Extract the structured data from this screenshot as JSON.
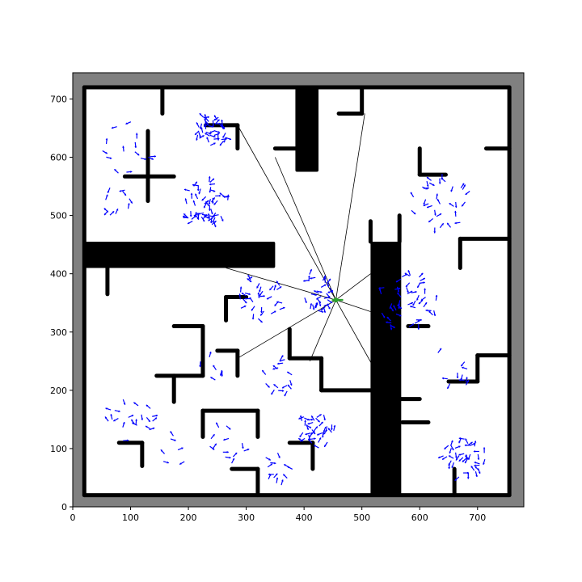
{
  "chart_data": {
    "type": "scatter",
    "title": "",
    "xlabel": "",
    "ylabel": "",
    "xlim": [
      0,
      780
    ],
    "ylim": [
      0,
      745
    ],
    "xticks": [
      0,
      100,
      200,
      300,
      400,
      500,
      600,
      700
    ],
    "yticks": [
      0,
      100,
      200,
      300,
      400,
      500,
      600,
      700
    ],
    "xtick_labels": [
      "0",
      "100",
      "200",
      "300",
      "400",
      "500",
      "600",
      "700"
    ],
    "ytick_labels": [
      "0",
      "100",
      "200",
      "300",
      "400",
      "500",
      "600",
      "700"
    ],
    "grid": false,
    "legend": "none",
    "colors": {
      "outside": "#808080",
      "free": "#ffffff",
      "walls": "#000000",
      "particles": "#0000ff",
      "robot": "#2ca02c",
      "rays": "#000000"
    },
    "map": {
      "border": {
        "x0": 20,
        "y0": 20,
        "x1": 755,
        "y1": 720
      },
      "wall_segments": [
        [
          155,
          675,
          155,
          720
        ],
        [
          230,
          655,
          285,
          655
        ],
        [
          285,
          655,
          285,
          615
        ],
        [
          130,
          645,
          130,
          525
        ],
        [
          90,
          567,
          175,
          567
        ],
        [
          350,
          615,
          395,
          615
        ],
        [
          460,
          675,
          500,
          675
        ],
        [
          500,
          675,
          500,
          720
        ],
        [
          600,
          615,
          600,
          570
        ],
        [
          600,
          570,
          645,
          570
        ],
        [
          715,
          615,
          755,
          615
        ],
        [
          60,
          410,
          60,
          365
        ],
        [
          265,
          360,
          265,
          320
        ],
        [
          265,
          360,
          300,
          360
        ],
        [
          175,
          310,
          225,
          310
        ],
        [
          225,
          310,
          225,
          225
        ],
        [
          145,
          225,
          225,
          225
        ],
        [
          175,
          225,
          175,
          180
        ],
        [
          250,
          268,
          285,
          268
        ],
        [
          285,
          268,
          285,
          225
        ],
        [
          375,
          305,
          375,
          255
        ],
        [
          375,
          255,
          430,
          255
        ],
        [
          430,
          255,
          430,
          200
        ],
        [
          430,
          200,
          520,
          200
        ],
        [
          580,
          310,
          615,
          310
        ],
        [
          670,
          460,
          755,
          460
        ],
        [
          670,
          460,
          670,
          410
        ],
        [
          700,
          260,
          755,
          260
        ],
        [
          700,
          260,
          700,
          215
        ],
        [
          650,
          215,
          700,
          215
        ],
        [
          570,
          145,
          615,
          145
        ],
        [
          225,
          165,
          320,
          165
        ],
        [
          225,
          165,
          225,
          120
        ],
        [
          320,
          165,
          320,
          120
        ],
        [
          80,
          110,
          120,
          110
        ],
        [
          120,
          110,
          120,
          70
        ],
        [
          275,
          65,
          320,
          65
        ],
        [
          320,
          65,
          320,
          20
        ],
        [
          375,
          110,
          415,
          110
        ],
        [
          415,
          110,
          415,
          65
        ],
        [
          660,
          65,
          660,
          20
        ],
        [
          515,
          490,
          515,
          455
        ],
        [
          565,
          500,
          565,
          455
        ],
        [
          560,
          185,
          600,
          185
        ]
      ],
      "blocks": [
        {
          "x0": 385,
          "y0": 575,
          "x1": 425,
          "y1": 720
        },
        {
          "x0": 20,
          "y0": 410,
          "x1": 350,
          "y1": 455
        },
        {
          "x0": 515,
          "y0": 20,
          "x1": 568,
          "y1": 455
        }
      ]
    },
    "robot": {
      "x": 455,
      "y": 355,
      "heading_deg": 0
    },
    "rays": [
      [
        285,
        655
      ],
      [
        265,
        410
      ],
      [
        350,
        600
      ],
      [
        505,
        675
      ],
      [
        515,
        400
      ],
      [
        515,
        335
      ],
      [
        520,
        240
      ],
      [
        410,
        250
      ],
      [
        285,
        255
      ]
    ],
    "particle_clusters": [
      {
        "cx": 240,
        "cy": 645,
        "spread": 28,
        "count": 40
      },
      {
        "cx": 230,
        "cy": 520,
        "spread": 40,
        "count": 55
      },
      {
        "cx": 90,
        "cy": 620,
        "spread": 55,
        "count": 14
      },
      {
        "cx": 75,
        "cy": 520,
        "spread": 30,
        "count": 10
      },
      {
        "cx": 635,
        "cy": 530,
        "spread": 55,
        "count": 30
      },
      {
        "cx": 580,
        "cy": 350,
        "spread": 50,
        "count": 45
      },
      {
        "cx": 325,
        "cy": 360,
        "spread": 40,
        "count": 30
      },
      {
        "cx": 425,
        "cy": 370,
        "spread": 35,
        "count": 30
      },
      {
        "cx": 360,
        "cy": 225,
        "spread": 30,
        "count": 15
      },
      {
        "cx": 420,
        "cy": 130,
        "spread": 32,
        "count": 35
      },
      {
        "cx": 675,
        "cy": 85,
        "spread": 38,
        "count": 40
      },
      {
        "cx": 100,
        "cy": 150,
        "spread": 40,
        "count": 20
      },
      {
        "cx": 260,
        "cy": 100,
        "spread": 40,
        "count": 12
      },
      {
        "cx": 355,
        "cy": 65,
        "spread": 30,
        "count": 12
      },
      {
        "cx": 660,
        "cy": 240,
        "spread": 40,
        "count": 10
      },
      {
        "cx": 175,
        "cy": 100,
        "spread": 30,
        "count": 6
      },
      {
        "cx": 240,
        "cy": 240,
        "spread": 25,
        "count": 6
      }
    ]
  }
}
